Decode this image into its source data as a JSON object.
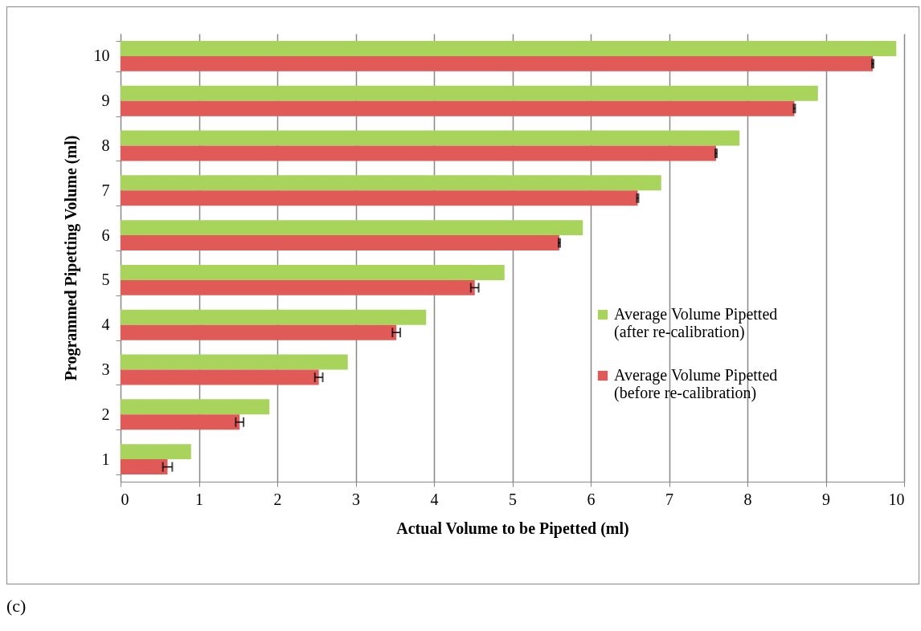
{
  "chart_data": {
    "type": "bar",
    "orientation": "horizontal",
    "xlabel": "Actual Volume to be Pipetted (ml)",
    "ylabel": "Programmed Pipetting Volume (ml)",
    "categories": [
      "10",
      "9",
      "8",
      "7",
      "6",
      "5",
      "4",
      "3",
      "2",
      "1"
    ],
    "series": [
      {
        "name": "Average Volume Pipetted (after re-calibration)",
        "color": "#a8d45c",
        "values": [
          9.9,
          8.9,
          7.9,
          6.9,
          5.9,
          4.9,
          3.9,
          2.9,
          1.9,
          0.9
        ]
      },
      {
        "name": "Average Volume Pipetted (before re-calibration)",
        "color": "#e05a58",
        "values": [
          9.6,
          8.6,
          7.6,
          6.6,
          5.6,
          4.52,
          3.52,
          2.53,
          1.52,
          0.6
        ],
        "errors": [
          0.01,
          0.01,
          0.01,
          0.01,
          0.01,
          0.05,
          0.05,
          0.05,
          0.05,
          0.06
        ]
      }
    ],
    "xlim": [
      0,
      10
    ],
    "xticks": [
      0,
      1,
      2,
      3,
      4,
      5,
      6,
      7,
      8,
      9,
      10
    ],
    "grid": "x",
    "legend": "right",
    "annotations": [
      "(c)"
    ]
  }
}
